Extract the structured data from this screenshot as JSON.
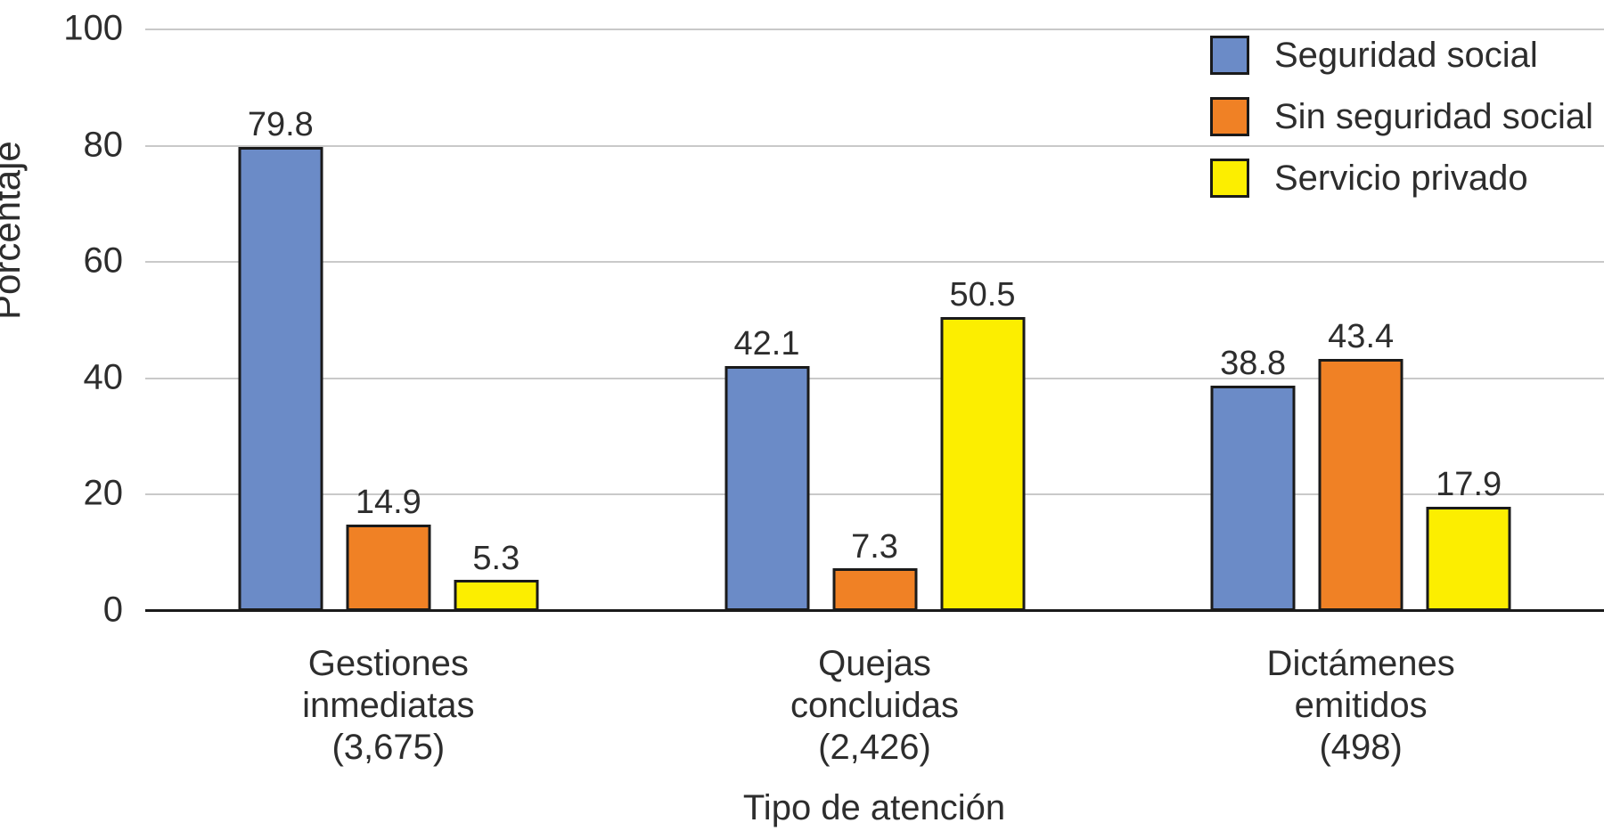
{
  "chart_data": {
    "type": "bar",
    "title": "",
    "xlabel": "Tipo de atención",
    "ylabel": "Porcentaje",
    "ylim": [
      0,
      100
    ],
    "yticks": [
      0,
      20,
      40,
      60,
      80,
      100
    ],
    "grid": true,
    "legend_position": "top-right",
    "categories": [
      "Gestiones inmediatas",
      "Quejas concluidas",
      "Dictámenes emitidos"
    ],
    "category_counts": [
      "(3,675)",
      "(2,426)",
      "(498)"
    ],
    "category_label_lines": [
      [
        "Gestiones",
        "inmediatas",
        "(3,675)"
      ],
      [
        "Quejas",
        "concluidas",
        "(2,426)"
      ],
      [
        "Dictámenes",
        "emitidos",
        "(498)"
      ]
    ],
    "series": [
      {
        "name": "Seguridad social",
        "color": "#6B8BC7",
        "values": [
          79.8,
          42.1,
          38.8
        ]
      },
      {
        "name": "Sin seguridad social",
        "color": "#F08125",
        "values": [
          14.9,
          7.3,
          43.4
        ]
      },
      {
        "name": "Servicio privado",
        "color": "#FCEE00",
        "values": [
          5.3,
          50.5,
          17.9
        ]
      }
    ],
    "colors": {
      "bar_outline": "#1A1A1A",
      "axis_line": "#1A1A1A",
      "gridline": "#C9C9C9",
      "text": "#2D2D2D",
      "background": "#FFFFFF"
    }
  }
}
